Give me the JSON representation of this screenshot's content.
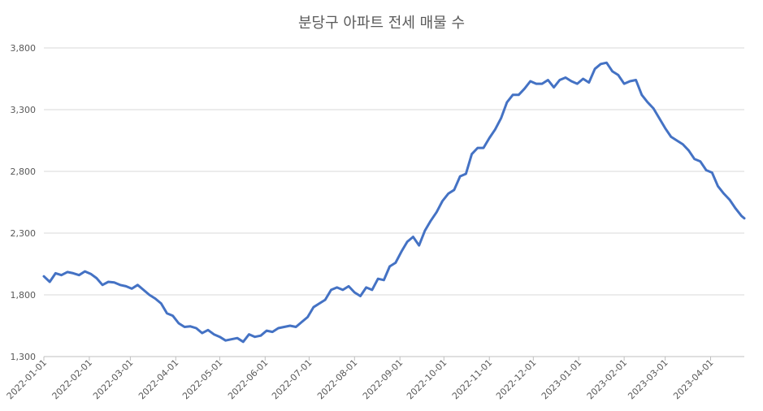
{
  "chart_data": {
    "type": "line",
    "title": "분당구 아파트 전세 매물 수",
    "xlabel": "",
    "ylabel": "",
    "ylim": [
      1300,
      3800
    ],
    "yticks": [
      "1,300",
      "1,800",
      "2,300",
      "2,800",
      "3,300",
      "3,800"
    ],
    "ytick_values": [
      1300,
      1800,
      2300,
      2800,
      3300,
      3800
    ],
    "xlim": [
      "2022-01-01",
      "2023-04-24"
    ],
    "xticks": [
      "2022-01-01",
      "2022-02-01",
      "2022-03-01",
      "2022-04-01",
      "2022-05-01",
      "2022-06-01",
      "2022-07-01",
      "2022-08-01",
      "2022-09-01",
      "2022-10-01",
      "2022-11-01",
      "2022-12-01",
      "2023-01-01",
      "2023-02-01",
      "2023-03-01",
      "2023-04-01"
    ],
    "grid": true,
    "legend": "none",
    "series": [
      {
        "color": "#4472c4",
        "x": [
          "2022-01-01",
          "2022-01-05",
          "2022-01-09",
          "2022-01-13",
          "2022-01-17",
          "2022-01-21",
          "2022-01-25",
          "2022-01-29",
          "2022-02-02",
          "2022-02-06",
          "2022-02-10",
          "2022-02-14",
          "2022-02-18",
          "2022-02-22",
          "2022-02-26",
          "2022-03-02",
          "2022-03-06",
          "2022-03-10",
          "2022-03-14",
          "2022-03-18",
          "2022-03-22",
          "2022-03-26",
          "2022-03-30",
          "2022-04-03",
          "2022-04-07",
          "2022-04-11",
          "2022-04-15",
          "2022-04-19",
          "2022-04-23",
          "2022-04-27",
          "2022-05-01",
          "2022-05-05",
          "2022-05-09",
          "2022-05-13",
          "2022-05-17",
          "2022-05-21",
          "2022-05-25",
          "2022-05-29",
          "2022-06-02",
          "2022-06-06",
          "2022-06-10",
          "2022-06-14",
          "2022-06-18",
          "2022-06-22",
          "2022-06-26",
          "2022-06-30",
          "2022-07-04",
          "2022-07-08",
          "2022-07-12",
          "2022-07-16",
          "2022-07-20",
          "2022-07-24",
          "2022-07-28",
          "2022-08-01",
          "2022-08-05",
          "2022-08-09",
          "2022-08-13",
          "2022-08-17",
          "2022-08-21",
          "2022-08-25",
          "2022-08-29",
          "2022-09-02",
          "2022-09-06",
          "2022-09-10",
          "2022-09-14",
          "2022-09-18",
          "2022-09-22",
          "2022-09-26",
          "2022-09-30",
          "2022-10-04",
          "2022-10-08",
          "2022-10-12",
          "2022-10-16",
          "2022-10-20",
          "2022-10-24",
          "2022-10-28",
          "2022-11-01",
          "2022-11-05",
          "2022-11-09",
          "2022-11-13",
          "2022-11-17",
          "2022-11-21",
          "2022-11-25",
          "2022-11-29",
          "2022-12-03",
          "2022-12-07",
          "2022-12-11",
          "2022-12-15",
          "2022-12-19",
          "2022-12-23",
          "2022-12-27",
          "2022-12-31",
          "2023-01-04",
          "2023-01-08",
          "2023-01-12",
          "2023-01-16",
          "2023-01-20",
          "2023-01-24",
          "2023-01-28",
          "2023-02-01",
          "2023-02-05",
          "2023-02-09",
          "2023-02-13",
          "2023-02-17",
          "2023-02-21",
          "2023-02-25",
          "2023-03-01",
          "2023-03-05",
          "2023-03-09",
          "2023-03-13",
          "2023-03-17",
          "2023-03-21",
          "2023-03-25",
          "2023-03-29",
          "2023-04-02",
          "2023-04-06",
          "2023-04-10",
          "2023-04-14",
          "2023-04-18",
          "2023-04-22",
          "2023-04-24"
        ],
        "values": [
          1950,
          1905,
          1975,
          1960,
          1985,
          1975,
          1960,
          1990,
          1970,
          1935,
          1880,
          1905,
          1900,
          1880,
          1870,
          1850,
          1880,
          1840,
          1800,
          1770,
          1730,
          1650,
          1630,
          1570,
          1540,
          1545,
          1530,
          1490,
          1515,
          1480,
          1460,
          1430,
          1440,
          1450,
          1420,
          1480,
          1460,
          1470,
          1510,
          1500,
          1530,
          1540,
          1550,
          1540,
          1580,
          1620,
          1700,
          1730,
          1760,
          1840,
          1860,
          1840,
          1870,
          1820,
          1790,
          1860,
          1840,
          1930,
          1920,
          2030,
          2060,
          2150,
          2230,
          2270,
          2200,
          2320,
          2400,
          2470,
          2560,
          2620,
          2650,
          2760,
          2780,
          2940,
          2990,
          2990,
          3070,
          3140,
          3230,
          3360,
          3420,
          3420,
          3470,
          3530,
          3510,
          3510,
          3540,
          3480,
          3540,
          3560,
          3530,
          3510,
          3550,
          3520,
          3630,
          3670,
          3680,
          3610,
          3580,
          3510,
          3530,
          3540,
          3420,
          3360,
          3310,
          3230,
          3150,
          3080,
          3050,
          3020,
          2970,
          2900,
          2880,
          2810,
          2790,
          2680,
          2620,
          2570,
          2500,
          2440,
          2420
        ]
      }
    ]
  }
}
